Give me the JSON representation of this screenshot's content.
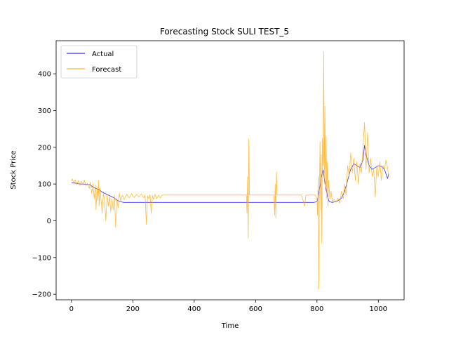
{
  "chart_data": {
    "type": "line",
    "title": "Forecasting Stock SULI TEST_5",
    "xlabel": "Time",
    "ylabel": "Stock Price",
    "xlim": [
      -50,
      1084
    ],
    "ylim": [
      -215,
      490
    ],
    "xticks": [
      0,
      200,
      400,
      600,
      800,
      1000
    ],
    "yticks": [
      -200,
      -100,
      0,
      100,
      200,
      300,
      400
    ],
    "ytick_labels": [
      "−200",
      "−100",
      "0",
      "100",
      "200",
      "300",
      "400"
    ],
    "grid": false,
    "legend": "upper-left",
    "series": [
      {
        "name": "Actual",
        "color": "#0000ff",
        "points": [
          [
            0,
            104
          ],
          [
            10,
            103
          ],
          [
            20,
            101
          ],
          [
            30,
            100
          ],
          [
            40,
            100
          ],
          [
            50,
            99
          ],
          [
            60,
            98
          ],
          [
            70,
            92
          ],
          [
            80,
            88
          ],
          [
            90,
            85
          ],
          [
            100,
            78
          ],
          [
            110,
            74
          ],
          [
            120,
            70
          ],
          [
            130,
            66
          ],
          [
            140,
            62
          ],
          [
            150,
            55
          ],
          [
            160,
            52
          ],
          [
            170,
            50
          ],
          [
            200,
            50
          ],
          [
            300,
            50
          ],
          [
            400,
            50
          ],
          [
            500,
            50
          ],
          [
            600,
            50
          ],
          [
            700,
            50
          ],
          [
            790,
            50
          ],
          [
            800,
            52
          ],
          [
            805,
            70
          ],
          [
            810,
            95
          ],
          [
            815,
            120
          ],
          [
            820,
            138
          ],
          [
            825,
            110
          ],
          [
            830,
            85
          ],
          [
            835,
            65
          ],
          [
            840,
            52
          ],
          [
            850,
            50
          ],
          [
            860,
            52
          ],
          [
            870,
            55
          ],
          [
            880,
            62
          ],
          [
            890,
            80
          ],
          [
            900,
            110
          ],
          [
            910,
            140
          ],
          [
            920,
            155
          ],
          [
            930,
            150
          ],
          [
            940,
            145
          ],
          [
            950,
            165
          ],
          [
            955,
            205
          ],
          [
            960,
            180
          ],
          [
            970,
            150
          ],
          [
            980,
            140
          ],
          [
            990,
            145
          ],
          [
            1000,
            150
          ],
          [
            1010,
            148
          ],
          [
            1020,
            140
          ],
          [
            1030,
            115
          ],
          [
            1034,
            128
          ]
        ]
      },
      {
        "name": "Forecast",
        "color": "#ffa500",
        "points": [
          [
            0,
            108
          ],
          [
            3,
            114
          ],
          [
            8,
            100
          ],
          [
            12,
            112
          ],
          [
            18,
            98
          ],
          [
            22,
            110
          ],
          [
            28,
            96
          ],
          [
            32,
            108
          ],
          [
            38,
            97
          ],
          [
            42,
            110
          ],
          [
            48,
            95
          ],
          [
            52,
            102
          ],
          [
            58,
            88
          ],
          [
            62,
            105
          ],
          [
            66,
            75
          ],
          [
            70,
            100
          ],
          [
            74,
            60
          ],
          [
            78,
            98
          ],
          [
            80,
            30
          ],
          [
            83,
            90
          ],
          [
            86,
            55
          ],
          [
            88,
            110
          ],
          [
            90,
            40
          ],
          [
            93,
            88
          ],
          [
            96,
            60
          ],
          [
            100,
            20
          ],
          [
            104,
            75
          ],
          [
            108,
            55
          ],
          [
            112,
            0
          ],
          [
            116,
            70
          ],
          [
            120,
            40
          ],
          [
            124,
            65
          ],
          [
            128,
            25
          ],
          [
            132,
            60
          ],
          [
            136,
            30
          ],
          [
            140,
            70
          ],
          [
            144,
            -18
          ],
          [
            148,
            60
          ],
          [
            152,
            35
          ],
          [
            156,
            75
          ],
          [
            160,
            55
          ],
          [
            166,
            70
          ],
          [
            172,
            58
          ],
          [
            180,
            72
          ],
          [
            188,
            62
          ],
          [
            196,
            74
          ],
          [
            204,
            63
          ],
          [
            212,
            72
          ],
          [
            220,
            65
          ],
          [
            228,
            73
          ],
          [
            236,
            62
          ],
          [
            240,
            70
          ],
          [
            244,
            -10
          ],
          [
            248,
            68
          ],
          [
            252,
            60
          ],
          [
            256,
            72
          ],
          [
            260,
            20
          ],
          [
            264,
            68
          ],
          [
            268,
            58
          ],
          [
            272,
            72
          ],
          [
            278,
            60
          ],
          [
            284,
            70
          ],
          [
            290,
            62
          ],
          [
            296,
            70
          ],
          [
            300,
            70
          ],
          [
            400,
            70
          ],
          [
            500,
            70
          ],
          [
            570,
            70
          ],
          [
            572,
            20
          ],
          [
            574,
            120
          ],
          [
            576,
            -47
          ],
          [
            578,
            222
          ],
          [
            580,
            70
          ],
          [
            600,
            70
          ],
          [
            660,
            70
          ],
          [
            662,
            15
          ],
          [
            664,
            100
          ],
          [
            666,
            8
          ],
          [
            668,
            133
          ],
          [
            670,
            70
          ],
          [
            700,
            70
          ],
          [
            750,
            70
          ],
          [
            760,
            40
          ],
          [
            764,
            70
          ],
          [
            780,
            70
          ],
          [
            795,
            70
          ],
          [
            800,
            60
          ],
          [
            802,
            15
          ],
          [
            804,
            120
          ],
          [
            806,
            -185
          ],
          [
            808,
            80
          ],
          [
            810,
            215
          ],
          [
            812,
            30
          ],
          [
            814,
            180
          ],
          [
            816,
            -62
          ],
          [
            818,
            225
          ],
          [
            820,
            150
          ],
          [
            822,
            460
          ],
          [
            824,
            100
          ],
          [
            826,
            312
          ],
          [
            828,
            80
          ],
          [
            830,
            230
          ],
          [
            832,
            60
          ],
          [
            834,
            160
          ],
          [
            836,
            40
          ],
          [
            838,
            110
          ],
          [
            842,
            60
          ],
          [
            846,
            80
          ],
          [
            850,
            52
          ],
          [
            856,
            58
          ],
          [
            862,
            50
          ],
          [
            868,
            62
          ],
          [
            874,
            48
          ],
          [
            880,
            80
          ],
          [
            886,
            60
          ],
          [
            890,
            100
          ],
          [
            895,
            70
          ],
          [
            900,
            150
          ],
          [
            905,
            120
          ],
          [
            910,
            185
          ],
          [
            915,
            130
          ],
          [
            920,
            170
          ],
          [
            925,
            110
          ],
          [
            930,
            160
          ],
          [
            935,
            100
          ],
          [
            940,
            155
          ],
          [
            945,
            130
          ],
          [
            950,
            200
          ],
          [
            955,
            268
          ],
          [
            960,
            140
          ],
          [
            965,
            240
          ],
          [
            970,
            130
          ],
          [
            975,
            170
          ],
          [
            980,
            120
          ],
          [
            985,
            140
          ],
          [
            990,
            65
          ],
          [
            995,
            150
          ],
          [
            1000,
            120
          ],
          [
            1005,
            160
          ],
          [
            1010,
            110
          ],
          [
            1015,
            150
          ],
          [
            1020,
            140
          ],
          [
            1025,
            165
          ],
          [
            1030,
            145
          ],
          [
            1034,
            120
          ]
        ]
      }
    ]
  }
}
